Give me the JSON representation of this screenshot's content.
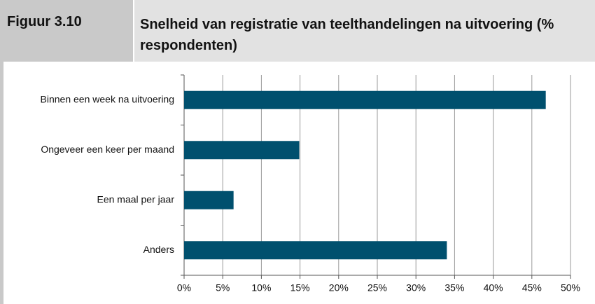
{
  "figure_label": "Figuur 3.10",
  "chart_data": {
    "type": "hbar",
    "title": "Snelheid van registratie van teelthandelingen na uitvoering (% respondenten)",
    "categories": [
      "Binnen een week na uitvoering",
      "Ongeveer een keer per maand",
      "Een maal per jaar",
      "Anders"
    ],
    "values": [
      46.8,
      14.9,
      6.4,
      34.0
    ],
    "color": "#00506e",
    "xlim": [
      0,
      50
    ],
    "xticks": [
      {
        "value": 0,
        "label": "0%"
      },
      {
        "value": 5,
        "label": "5%"
      },
      {
        "value": 10,
        "label": "10%"
      },
      {
        "value": 15,
        "label": "15%"
      },
      {
        "value": 20,
        "label": "20%"
      },
      {
        "value": 25,
        "label": "25%"
      },
      {
        "value": 30,
        "label": "30%"
      },
      {
        "value": 35,
        "label": "35%"
      },
      {
        "value": 40,
        "label": "40%"
      },
      {
        "value": 45,
        "label": "45%"
      },
      {
        "value": 50,
        "label": "50%"
      }
    ],
    "grid": true
  }
}
